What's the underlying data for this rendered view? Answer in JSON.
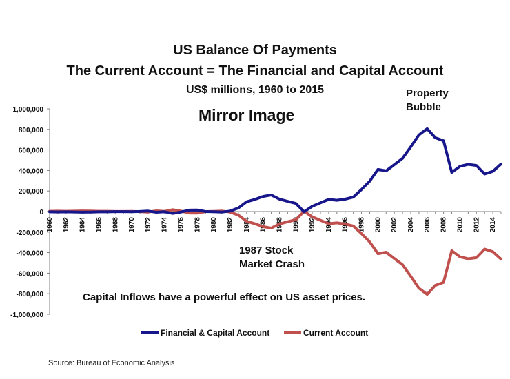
{
  "chart_data": {
    "type": "line",
    "title": "US Balance Of Payments",
    "title_line2": "The Current Account = The Financial and Capital Account",
    "subtitle": "US$ millions, 1960 to 2015",
    "headline": "Mirror Image",
    "annotations": {
      "property_line1": "Property",
      "property_line2": "Bubble",
      "crash_line1": "1987 Stock",
      "crash_line2": "Market Crash",
      "capital": "Capital Inflows have a powerful effect on US asset prices."
    },
    "source": "Source: Bureau of Economic Analysis",
    "xlabel": "",
    "ylabel": "",
    "ylim": [
      -1000000,
      1000000
    ],
    "y_ticks": [
      1000000,
      800000,
      600000,
      400000,
      200000,
      0,
      -200000,
      -400000,
      -600000,
      -800000,
      -1000000
    ],
    "y_tick_labels": [
      "1,000,000",
      "800,000",
      "600,000",
      "400,000",
      "200,000",
      "0",
      "-200,000",
      "-400,000",
      "-600,000",
      "-800,000",
      "-1,000,000"
    ],
    "x": [
      1960,
      1961,
      1962,
      1963,
      1964,
      1965,
      1966,
      1967,
      1968,
      1969,
      1970,
      1971,
      1972,
      1973,
      1974,
      1975,
      1976,
      1977,
      1978,
      1979,
      1980,
      1981,
      1982,
      1983,
      1984,
      1985,
      1986,
      1987,
      1988,
      1989,
      1990,
      1991,
      1992,
      1993,
      1994,
      1995,
      1996,
      1997,
      1998,
      1999,
      2000,
      2001,
      2002,
      2003,
      2004,
      2005,
      2006,
      2007,
      2008,
      2009,
      2010,
      2011,
      2012,
      2013,
      2014,
      2015
    ],
    "x_tick_labels": [
      "1960",
      "1962",
      "1964",
      "1966",
      "1968",
      "1970",
      "1972",
      "1974",
      "1976",
      "1978",
      "1980",
      "1982",
      "1984",
      "1986",
      "1988",
      "1990",
      "1992",
      "1994",
      "1996",
      "1998",
      "2000",
      "2002",
      "2004",
      "2006",
      "2008",
      "2010",
      "2012",
      "2014"
    ],
    "series": [
      {
        "name": "Financial & Capital Account",
        "color": "#17168a",
        "values": [
          -3000,
          -4000,
          -3000,
          -4000,
          -6000,
          -5000,
          -3000,
          -3000,
          -1000,
          -1000,
          -2000,
          1000,
          5000,
          -7000,
          -2000,
          -18000,
          -5000,
          14000,
          15000,
          0,
          -2000,
          -5000,
          5000,
          35000,
          95000,
          118000,
          147000,
          161000,
          121000,
          99000,
          79000,
          -3000,
          52000,
          85000,
          118000,
          110000,
          121000,
          140000,
          215000,
          296000,
          410000,
          396000,
          457000,
          518000,
          630000,
          746000,
          806000,
          718000,
          690000,
          381000,
          441000,
          460000,
          449000,
          366000,
          391000,
          463000
        ]
      },
      {
        "name": "Current Account",
        "color": "#c0504d",
        "values": [
          3000,
          4000,
          3000,
          4000,
          6000,
          5000,
          3000,
          3000,
          1000,
          1000,
          2000,
          -1000,
          -5000,
          7000,
          2000,
          18000,
          5000,
          -14000,
          -15000,
          0,
          2000,
          5000,
          -5000,
          -35000,
          -95000,
          -118000,
          -147000,
          -161000,
          -121000,
          -99000,
          -79000,
          3000,
          -52000,
          -85000,
          -118000,
          -110000,
          -121000,
          -140000,
          -215000,
          -296000,
          -410000,
          -396000,
          -457000,
          -518000,
          -630000,
          -746000,
          -806000,
          -718000,
          -690000,
          -381000,
          -441000,
          -460000,
          -449000,
          -366000,
          -391000,
          -463000
        ]
      }
    ],
    "legend_position": "bottom"
  }
}
